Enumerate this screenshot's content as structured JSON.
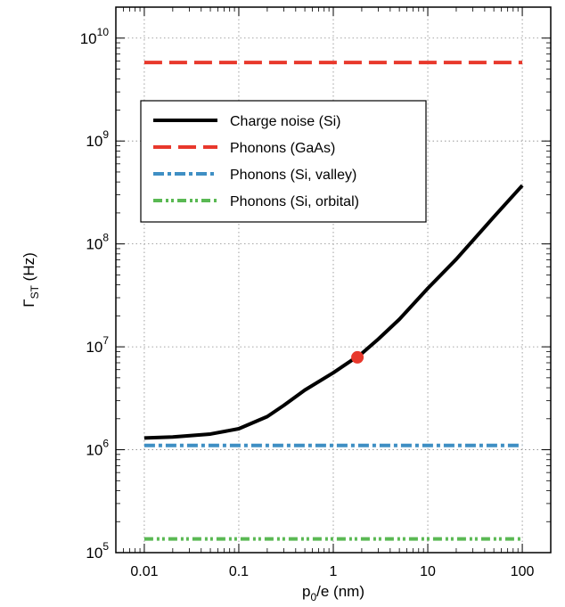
{
  "chart_data": {
    "type": "line",
    "xlabel_main": "p",
    "xlabel_sub": "0",
    "xlabel_rest": "/e (nm)",
    "ylabel_main": "Γ",
    "ylabel_sub": "ST",
    "ylabel_rest": " (Hz)",
    "x_scale": "log",
    "y_scale": "log",
    "xlim": [
      0.005,
      200
    ],
    "ylim": [
      100000,
      20000000000
    ],
    "x_ticks": [
      {
        "value": 0.01,
        "label": "0.01"
      },
      {
        "value": 0.1,
        "label": "0.1"
      },
      {
        "value": 1,
        "label": "1"
      },
      {
        "value": 10,
        "label": "10"
      },
      {
        "value": 100,
        "label": "100"
      }
    ],
    "y_ticks": [
      {
        "value": 100000,
        "base": "10",
        "exp": "5"
      },
      {
        "value": 1000000,
        "base": "10",
        "exp": "6"
      },
      {
        "value": 10000000,
        "base": "10",
        "exp": "7"
      },
      {
        "value": 100000000,
        "base": "10",
        "exp": "8"
      },
      {
        "value": 1000000000,
        "base": "10",
        "exp": "9"
      },
      {
        "value": 10000000000,
        "base": "10",
        "exp": "10"
      }
    ],
    "grid": true,
    "legend_position": "upper-left",
    "series": [
      {
        "name": "Charge noise (Si)",
        "color": "#000000",
        "style": "solid",
        "x": [
          0.01,
          0.02,
          0.05,
          0.1,
          0.2,
          0.3,
          0.5,
          1,
          2,
          3,
          5,
          10,
          20,
          50,
          100
        ],
        "y": [
          1300000,
          1330000,
          1420000,
          1600000,
          2100000,
          2700000,
          3800000,
          5600000,
          8600000,
          11900000,
          18500000,
          37000000,
          71000000,
          183000000,
          370000000
        ]
      },
      {
        "name": "Phonons (GaAs)",
        "color": "#e8382c",
        "style": "dashed",
        "x": [
          0.01,
          100
        ],
        "y": [
          5800000000,
          5800000000
        ]
      },
      {
        "name": "Phonons (Si, valley)",
        "color": "#3f8fc4",
        "style": "dashdot",
        "x": [
          0.01,
          100
        ],
        "y": [
          1100000,
          1100000
        ]
      },
      {
        "name": "Phonons (Si, orbital)",
        "color": "#5ab953",
        "style": "dashdotdot",
        "x": [
          0.01,
          100
        ],
        "y": [
          136000,
          136000
        ]
      }
    ],
    "marker": {
      "x": 1.8,
      "y": 7900000,
      "color": "#e8382c"
    }
  }
}
